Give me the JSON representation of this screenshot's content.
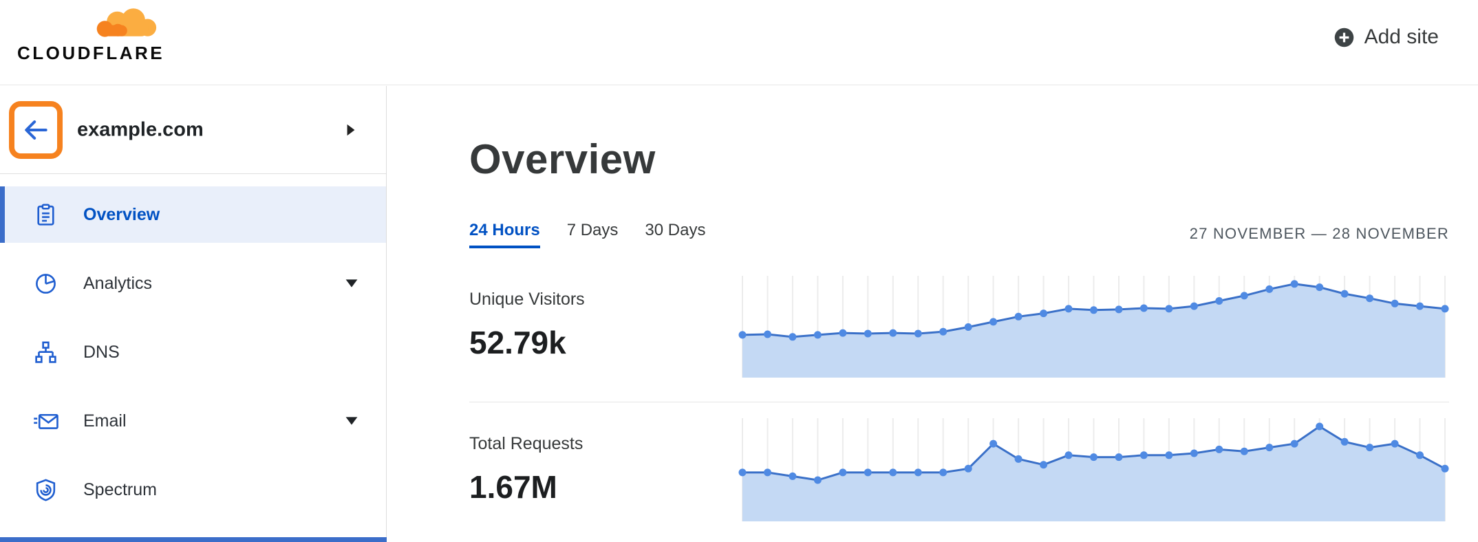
{
  "brand": {
    "logo_text": "CLOUDFLARE",
    "orange": "#F6821F",
    "orange_light": "#FBAD41",
    "blue": "#0051C3"
  },
  "header": {
    "add_site_label": "Add site"
  },
  "sidebar": {
    "site_name": "example.com",
    "items": [
      {
        "label": "Overview",
        "icon": "clipboard-icon",
        "active": true,
        "expandable": false
      },
      {
        "label": "Analytics",
        "icon": "pie-chart-icon",
        "active": false,
        "expandable": true
      },
      {
        "label": "DNS",
        "icon": "sitemap-icon",
        "active": false,
        "expandable": false
      },
      {
        "label": "Email",
        "icon": "envelope-icon",
        "active": false,
        "expandable": true
      },
      {
        "label": "Spectrum",
        "icon": "shield-icon",
        "active": false,
        "expandable": false
      }
    ]
  },
  "main": {
    "title": "Overview",
    "tabs": [
      {
        "label": "24 Hours",
        "active": true
      },
      {
        "label": "7 Days",
        "active": false
      },
      {
        "label": "30 Days",
        "active": false
      }
    ],
    "date_range": "27 NOVEMBER — 28 NOVEMBER",
    "metrics": [
      {
        "label": "Unique Visitors",
        "value": "52.79k"
      },
      {
        "label": "Total Requests",
        "value": "1.67M"
      }
    ]
  },
  "chart_data": [
    {
      "type": "area",
      "title": "Unique Visitors — 24 Hours",
      "total_label": "52.79k",
      "x_unit": "time buckets across 27–28 November (unlabeled axis)",
      "y_unit": "visitors per interval (thousands, estimated from sparkline)",
      "grid": true,
      "legend": "none",
      "values": [
        1.52,
        1.53,
        1.49,
        1.52,
        1.55,
        1.54,
        1.55,
        1.54,
        1.57,
        1.64,
        1.72,
        1.8,
        1.85,
        1.92,
        1.9,
        1.91,
        1.93,
        1.92,
        1.96,
        2.04,
        2.12,
        2.22,
        2.3,
        2.25,
        2.15,
        2.08,
        2.0,
        1.96,
        1.92
      ],
      "colors": {
        "line": "#3a70c8",
        "dot": "#4f8ae3",
        "fill": "#c4d9f4",
        "grid": "#ececec"
      }
    },
    {
      "type": "area",
      "title": "Total Requests — 24 Hours",
      "total_label": "1.67M",
      "x_unit": "time buckets across 27–28 November (unlabeled axis)",
      "y_unit": "requests per interval (thousands, estimated from sparkline)",
      "grid": true,
      "legend": "none",
      "values": [
        50,
        50,
        48,
        46,
        50,
        50,
        50,
        50,
        50,
        52,
        65,
        57,
        54,
        59,
        58,
        58,
        59,
        59,
        60,
        62,
        61,
        63,
        65,
        74,
        66,
        63,
        65,
        59,
        52
      ],
      "colors": {
        "line": "#3a70c8",
        "dot": "#4f8ae3",
        "fill": "#c4d9f4",
        "grid": "#ececec"
      }
    }
  ]
}
